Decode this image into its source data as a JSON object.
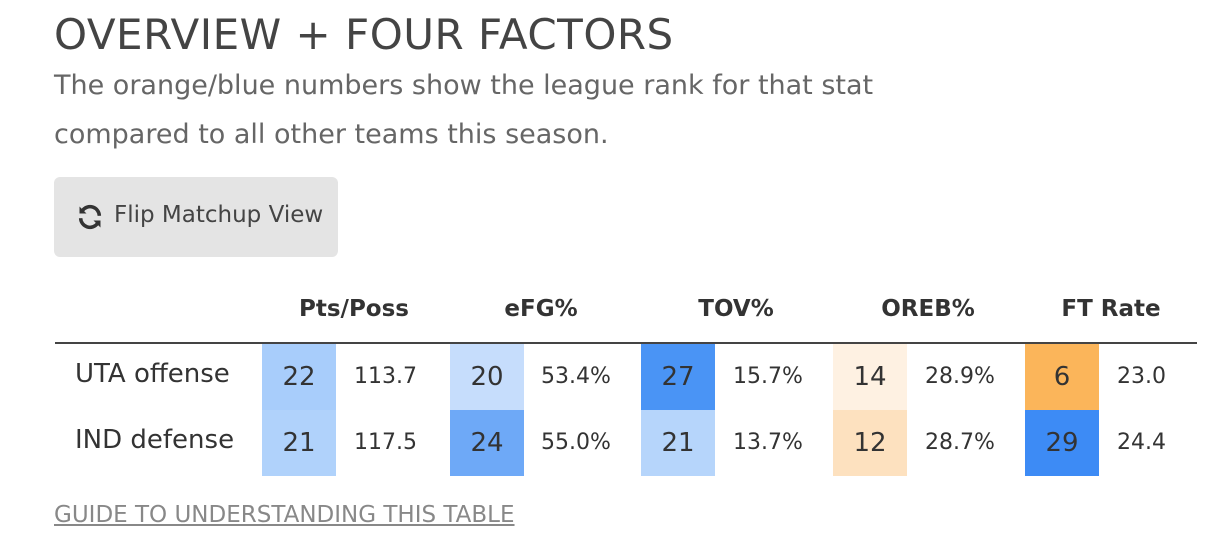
{
  "header": {
    "title": "OVERVIEW + FOUR FACTORS",
    "subtitle_lines": [
      "The orange/blue numbers show the league rank for that stat",
      "compared to all other teams this season."
    ]
  },
  "button": {
    "label": "Flip Matchup View"
  },
  "table": {
    "columns": [
      "Pts/Poss",
      "eFG%",
      "TOV%",
      "OREB%",
      "FT Rate"
    ],
    "rows": [
      {
        "label": "UTA offense",
        "cells": [
          {
            "rank": "22",
            "value": "113.7",
            "color": "#a8cdfb"
          },
          {
            "rank": "20",
            "value": "53.4%",
            "color": "#c6ddfc"
          },
          {
            "rank": "27",
            "value": "15.7%",
            "color": "#4a94f5"
          },
          {
            "rank": "14",
            "value": "28.9%",
            "color": "#fef1e2"
          },
          {
            "rank": "6",
            "value": "23.0",
            "color": "#fbb55a"
          }
        ]
      },
      {
        "label": "IND defense",
        "cells": [
          {
            "rank": "21",
            "value": "117.5",
            "color": "#b0d2fb"
          },
          {
            "rank": "24",
            "value": "55.0%",
            "color": "#6ea9f7"
          },
          {
            "rank": "21",
            "value": "13.7%",
            "color": "#b6d5fb"
          },
          {
            "rank": "12",
            "value": "28.7%",
            "color": "#fde1bf"
          },
          {
            "rank": "29",
            "value": "24.4",
            "color": "#3d8bf5"
          }
        ]
      }
    ]
  },
  "link": {
    "label": "GUIDE TO UNDERSTANDING THIS TABLE"
  }
}
